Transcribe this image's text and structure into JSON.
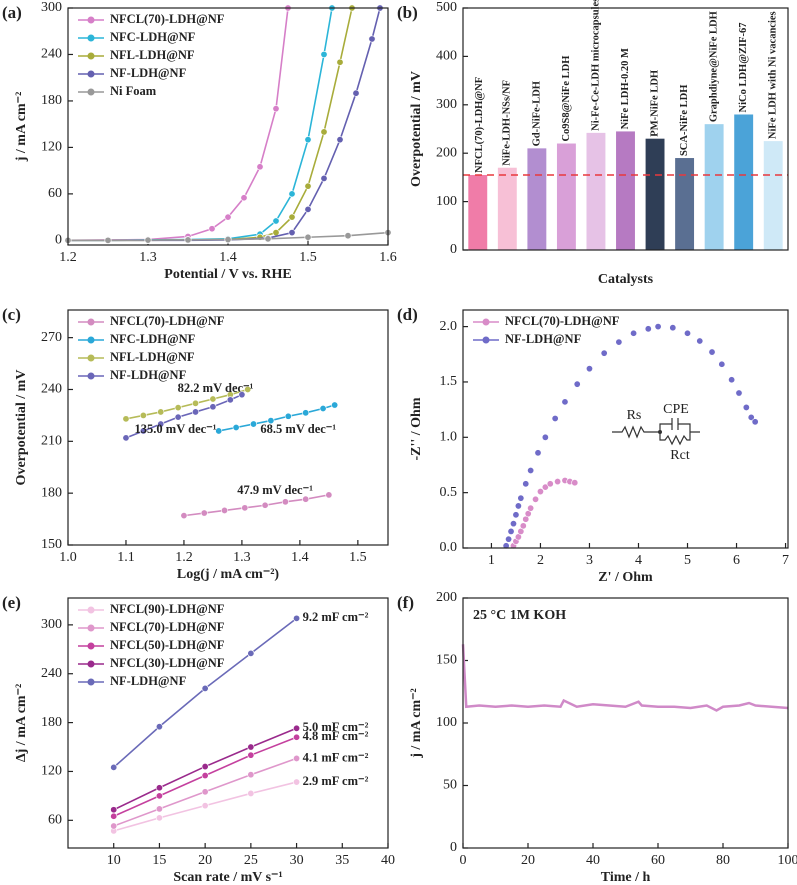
{
  "chart_data": [
    {
      "type": "line",
      "label": "(a)",
      "xlabel": "Potential / V vs. RHE",
      "ylabel": "j / mA cm⁻²",
      "xlim": [
        1.2,
        1.6
      ],
      "ylim": [
        -6,
        300
      ],
      "xticks": [
        1.2,
        1.3,
        1.4,
        1.5,
        1.6
      ],
      "yticks": [
        0,
        60,
        120,
        180,
        240,
        300
      ],
      "legend": "upper left",
      "markers": true,
      "series": [
        {
          "name": "NFCL(70)-LDH@NF",
          "color": "#d67fc8",
          "x": [
            1.2,
            1.25,
            1.3,
            1.35,
            1.38,
            1.4,
            1.42,
            1.44,
            1.46,
            1.475
          ],
          "values": [
            0,
            0.5,
            1,
            5,
            15,
            30,
            55,
            95,
            170,
            300
          ]
        },
        {
          "name": "NFC-LDH@NF",
          "color": "#2bb5d8",
          "x": [
            1.2,
            1.25,
            1.3,
            1.35,
            1.4,
            1.44,
            1.46,
            1.48,
            1.5,
            1.52,
            1.53
          ],
          "values": [
            0,
            0,
            0.5,
            1,
            2,
            8,
            25,
            60,
            130,
            240,
            300
          ]
        },
        {
          "name": "NFL-LDH@NF",
          "color": "#a8ac3a",
          "x": [
            1.2,
            1.25,
            1.3,
            1.35,
            1.4,
            1.44,
            1.46,
            1.48,
            1.5,
            1.52,
            1.54,
            1.555
          ],
          "values": [
            0,
            0,
            0,
            0.5,
            1,
            4,
            10,
            30,
            70,
            140,
            230,
            300
          ]
        },
        {
          "name": "NF-LDH@NF",
          "color": "#6460b0",
          "x": [
            1.2,
            1.25,
            1.3,
            1.35,
            1.4,
            1.45,
            1.48,
            1.5,
            1.52,
            1.54,
            1.56,
            1.58,
            1.59
          ],
          "values": [
            0,
            0,
            0,
            0,
            0.5,
            3,
            10,
            40,
            80,
            130,
            190,
            260,
            300
          ]
        },
        {
          "name": "Ni Foam",
          "color": "#999999",
          "x": [
            1.2,
            1.25,
            1.3,
            1.35,
            1.4,
            1.45,
            1.5,
            1.55,
            1.6
          ],
          "values": [
            0,
            0,
            0.3,
            0.6,
            1,
            2,
            4,
            6,
            10
          ]
        }
      ]
    },
    {
      "type": "bar",
      "label": "(b)",
      "xlabel": "Catalysts",
      "ylabel": "Overpotential / mV",
      "ylim": [
        0,
        500
      ],
      "yticks": [
        0,
        100,
        200,
        300,
        400,
        500
      ],
      "categories": [
        "NFCL(70)-LDH@NF",
        "NiFe-LDH-NSs/NF",
        "Gd-NiFe-LDH",
        "Co9S8@NiFe LDH",
        "Ni-Fe-Ce-LDH microcapsules",
        "NiFe LDH-0.20 M",
        "PM-NiFe LDH",
        "SCA-NiFe LDH",
        "Graphdiyne@NiFe LDH",
        "NiCo LDH@ZIF-67",
        "NiFe LDH with Ni vacancies"
      ],
      "values": [
        155,
        170,
        210,
        220,
        242,
        245,
        230,
        190,
        260,
        280,
        225
      ],
      "colors": [
        "#f07ca8",
        "#f7c0d6",
        "#b28ed0",
        "#d9a0d8",
        "#e6c2e6",
        "#b67ac2",
        "#2f3e56",
        "#5a6f92",
        "#9fd2ee",
        "#4ba3d8",
        "#cfe9f7"
      ]
    },
    {
      "type": "scatter",
      "label": "(c)",
      "xlabel": "Log(j / mA cm⁻²)",
      "ylabel": "Overpotential / mV",
      "xlim": [
        1.0,
        1.552
      ],
      "ylim": [
        150,
        286
      ],
      "xticks": [
        {
          "value": 1,
          "label": "1.0"
        },
        1.1,
        1.2,
        1.3,
        1.4,
        1.5
      ],
      "yticks": [
        150,
        180,
        210,
        240,
        270
      ],
      "legend": "upper left",
      "markers": true,
      "lines": true,
      "series": [
        {
          "name": "NFCL(70)-LDH@NF",
          "note": "47.9 mV dec⁻¹",
          "color": "#d38bc0",
          "x": [
            1.2,
            1.235,
            1.27,
            1.305,
            1.34,
            1.375,
            1.41,
            1.45
          ],
          "values": [
            167,
            168.5,
            170,
            171.5,
            173,
            175,
            176.5,
            179
          ]
        },
        {
          "name": "NFC-LDH@NF",
          "note": "68.5 mV dec⁻¹",
          "color": "#2aa8d8",
          "x": [
            1.26,
            1.29,
            1.32,
            1.35,
            1.38,
            1.41,
            1.44,
            1.46
          ],
          "values": [
            216,
            218,
            220,
            222,
            224.5,
            226.5,
            229,
            231
          ]
        },
        {
          "name": "NFL-LDH@NF",
          "note": "82.2 mV dec⁻¹",
          "color": "#b6bb58",
          "x": [
            1.1,
            1.13,
            1.16,
            1.19,
            1.22,
            1.25,
            1.28,
            1.31
          ],
          "values": [
            223,
            225,
            227,
            229.5,
            232,
            234.5,
            237,
            240
          ]
        },
        {
          "name": "NF-LDH@NF",
          "note": "135.0 mV dec⁻¹",
          "color": "#6a66b8",
          "x": [
            1.1,
            1.13,
            1.16,
            1.19,
            1.22,
            1.25,
            1.28,
            1.3
          ],
          "values": [
            212,
            216,
            220,
            224,
            227,
            230,
            234,
            237
          ]
        }
      ]
    },
    {
      "type": "scatter",
      "label": "(d)",
      "xlabel": "Z' / Ohm",
      "ylabel": "-Z'' / Ohm",
      "xlim": [
        0.42,
        7.05
      ],
      "ylim": [
        0,
        2.15
      ],
      "xticks": [
        1,
        2,
        3,
        4,
        5,
        6,
        7
      ],
      "yticks": [
        {
          "value": 0,
          "label": "0.0"
        },
        0.5,
        {
          "value": 1,
          "label": "1.0"
        },
        1.5,
        {
          "value": 2,
          "label": "2.0"
        }
      ],
      "legend": "upper left",
      "markers": true,
      "circuit_labels": [
        "Rs",
        "CPE",
        "Rct"
      ],
      "series": [
        {
          "name": "NFCL(70)-LDH@NF",
          "color": "#d88cc8",
          "x": [
            1.45,
            1.5,
            1.55,
            1.6,
            1.65,
            1.7,
            1.75,
            1.8,
            1.9,
            2.0,
            2.1,
            2.2,
            2.35,
            2.5,
            2.6,
            2.7
          ],
          "values": [
            0.02,
            0.06,
            0.1,
            0.15,
            0.2,
            0.26,
            0.31,
            0.36,
            0.44,
            0.51,
            0.55,
            0.58,
            0.6,
            0.61,
            0.6,
            0.59
          ]
        },
        {
          "name": "NF-LDH@NF",
          "color": "#6f6bc8",
          "x": [
            1.3,
            1.35,
            1.4,
            1.45,
            1.5,
            1.55,
            1.6,
            1.7,
            1.8,
            1.95,
            2.1,
            2.3,
            2.5,
            2.75,
            3.0,
            3.3,
            3.6,
            3.9,
            4.2,
            4.4,
            4.7,
            5.0,
            5.25,
            5.5,
            5.7,
            5.9,
            6.05,
            6.2,
            6.3,
            6.38
          ],
          "values": [
            0.02,
            0.08,
            0.15,
            0.22,
            0.3,
            0.38,
            0.45,
            0.58,
            0.7,
            0.86,
            1.0,
            1.17,
            1.32,
            1.48,
            1.62,
            1.76,
            1.86,
            1.94,
            1.98,
            2.0,
            1.99,
            1.94,
            1.87,
            1.77,
            1.66,
            1.52,
            1.4,
            1.27,
            1.18,
            1.14
          ]
        }
      ]
    },
    {
      "type": "line",
      "label": "(e)",
      "xlabel": "Scan rate / mV s⁻¹",
      "ylabel": "Δj / mA cm⁻²",
      "xlim": [
        5,
        40
      ],
      "ylim": [
        26,
        333
      ],
      "xticks": [
        10,
        15,
        20,
        25,
        30,
        35,
        40
      ],
      "yticks": [
        60,
        120,
        180,
        240,
        300
      ],
      "legend": "upper left",
      "markers": true,
      "series": [
        {
          "name": "NFCL(90)-LDH@NF",
          "note": "2.9 mF cm⁻²",
          "color": "#f2c3e2",
          "x": [
            10,
            15,
            20,
            25,
            30
          ],
          "values": [
            47,
            63,
            78,
            93,
            107
          ]
        },
        {
          "name": "NFCL(70)-LDH@NF",
          "note": "4.1 mF cm⁻²",
          "color": "#df97cb",
          "x": [
            10,
            15,
            20,
            25,
            30
          ],
          "values": [
            53,
            74,
            95,
            116,
            136
          ]
        },
        {
          "name": "NFCL(50)-LDH@NF",
          "note": "4.8 mF cm⁻²",
          "color": "#c4409e",
          "x": [
            10,
            15,
            20,
            25,
            30
          ],
          "values": [
            65,
            90,
            115,
            140,
            162
          ]
        },
        {
          "name": "NFCL(30)-LDH@NF",
          "note": "5.0 mF cm⁻²",
          "color": "#9a2a8c",
          "x": [
            10,
            15,
            20,
            25,
            30
          ],
          "values": [
            73,
            100,
            126,
            150,
            173
          ]
        },
        {
          "name": "NF-LDH@NF",
          "note": "9.2 mF cm⁻²",
          "color": "#6a6ab8",
          "x": [
            10,
            15,
            20,
            25,
            30
          ],
          "values": [
            125,
            175,
            222,
            265,
            308
          ]
        }
      ]
    },
    {
      "type": "line",
      "label": "(f)",
      "xlabel": "Time / h",
      "ylabel": "j / mA cm⁻²",
      "annotation": "25 °C 1M KOH",
      "xlim": [
        0,
        100
      ],
      "ylim": [
        0,
        200
      ],
      "xticks": [
        0,
        20,
        40,
        60,
        80,
        100
      ],
      "yticks": [
        0,
        50,
        100,
        150,
        200
      ],
      "markers": false,
      "series": [
        {
          "color": "#d08ac8",
          "x": [
            0,
            1,
            5,
            10,
            15,
            20,
            25,
            30,
            31,
            35,
            40,
            45,
            50,
            54,
            55,
            60,
            65,
            70,
            75,
            78,
            80,
            85,
            88,
            90,
            95,
            100
          ],
          "values": [
            163,
            113,
            114,
            113,
            114,
            113,
            114,
            113,
            118,
            113,
            115,
            114,
            113,
            117,
            114,
            113,
            113,
            112,
            114,
            110,
            113,
            114,
            116,
            114,
            113,
            112
          ]
        }
      ]
    }
  ]
}
